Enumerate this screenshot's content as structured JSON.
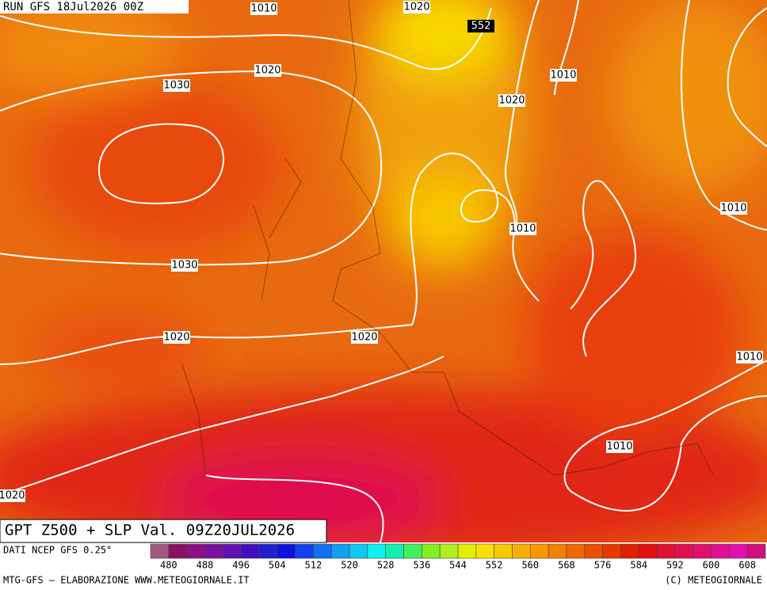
{
  "header": {
    "run": "RUN GFS 18Jul2026 00Z"
  },
  "isobar_labels": [
    "1010",
    "1020",
    "552",
    "1020",
    "1010",
    "1030",
    "1020",
    "1030",
    "1010",
    "1010",
    "1020",
    "1020",
    "1010",
    "1010",
    "1020"
  ],
  "title": "GPT Z500 + SLP Val. 09Z20JUL2026",
  "source": "DATI NCEP GFS 0.25°",
  "color_scale": {
    "labels": [
      480,
      488,
      496,
      504,
      512,
      520,
      528,
      536,
      544,
      552,
      560,
      568,
      576,
      584,
      592,
      600,
      608
    ],
    "colors": [
      "#a05a7a",
      "#8c1060",
      "#8c1080",
      "#7a10a0",
      "#6010b0",
      "#4010c0",
      "#2020d0",
      "#1010e0",
      "#1040f0",
      "#1070f0",
      "#10a0f0",
      "#10c8f0",
      "#10f0f0",
      "#10f0b0",
      "#40f060",
      "#80f020",
      "#b0f020",
      "#e0f000",
      "#f8e000",
      "#f8c800",
      "#f8b000",
      "#f89800",
      "#f08000",
      "#f06800",
      "#e85000",
      "#e83800",
      "#e02000",
      "#e01010",
      "#e01030",
      "#e01050",
      "#e01070",
      "#e01090",
      "#e010b0",
      "#d01080"
    ]
  },
  "footer": {
    "left": "MTG-GFS — ELABORAZIONE WWW.METEOGIORNALE.IT",
    "right": "(C) METEOGIORNALE"
  }
}
